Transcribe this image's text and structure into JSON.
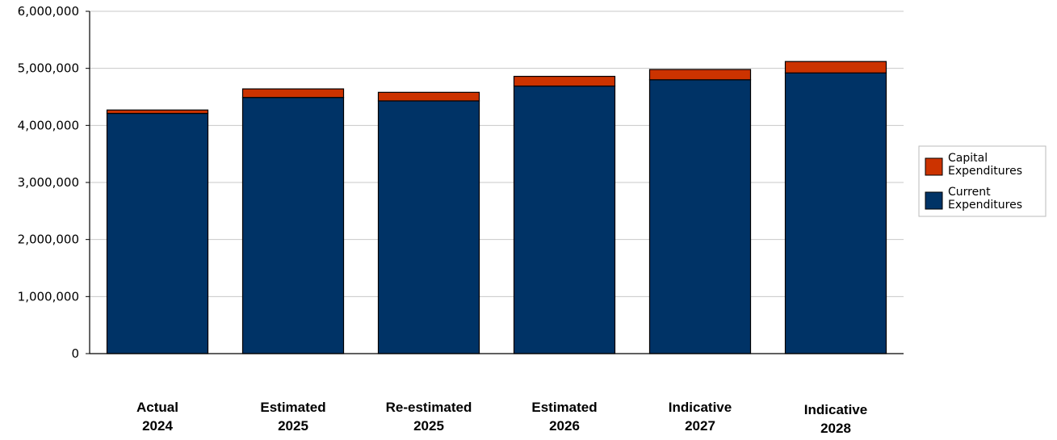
{
  "chart_data": {
    "type": "bar",
    "stacked": true,
    "categories": [
      [
        "Actual",
        "2024"
      ],
      [
        "Estimated",
        "2025"
      ],
      [
        "Re-estimated",
        "2025"
      ],
      [
        "Estimated",
        "2026"
      ],
      [
        "Indicative",
        "2027"
      ],
      [
        "Indicative",
        "2028"
      ]
    ],
    "series": [
      {
        "name": "Current Expenditures",
        "color": "#003366",
        "values": [
          4210000,
          4490000,
          4430000,
          4690000,
          4800000,
          4920000
        ]
      },
      {
        "name": "Capital Expenditures",
        "color": "#cc3300",
        "values": [
          60000,
          150000,
          150000,
          170000,
          180000,
          200000
        ]
      }
    ],
    "legend": {
      "placement": "right",
      "entries": [
        {
          "lines": [
            "Capital",
            "Expenditures"
          ],
          "color": "#cc3300"
        },
        {
          "lines": [
            "Current",
            "Expenditures"
          ],
          "color": "#003366"
        }
      ]
    },
    "ylim": [
      0,
      6000000
    ],
    "yticks": [
      0,
      1000000,
      2000000,
      3000000,
      4000000,
      5000000,
      6000000
    ],
    "ytick_labels": [
      "0",
      "1,000,000",
      "2,000,000",
      "3,000,000",
      "4,000,000",
      "5,000,000",
      "6,000,000"
    ],
    "grid": true,
    "title": "",
    "xlabel": "",
    "ylabel": ""
  }
}
